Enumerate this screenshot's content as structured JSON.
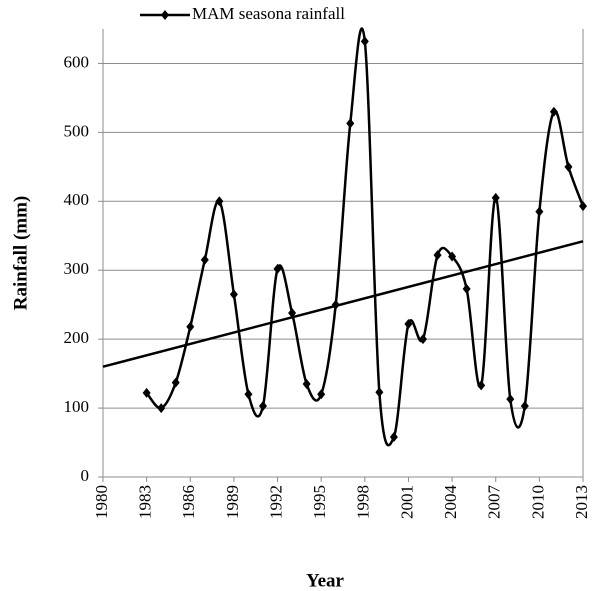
{
  "chart_data": {
    "type": "line",
    "x_label": "Year",
    "y_label": "Rainfall (mm)",
    "x": [
      1983,
      1984,
      1985,
      1986,
      1987,
      1988,
      1989,
      1990,
      1991,
      1992,
      1993,
      1994,
      1995,
      1996,
      1997,
      1998,
      1999,
      2000,
      2001,
      2002,
      2003,
      2004,
      2005,
      2006,
      2007,
      2008,
      2009,
      2010,
      2011,
      2012,
      2013
    ],
    "series": [
      {
        "name": "MAM seasona rainfall",
        "color": "#000000",
        "values": [
          122,
          100,
          137,
          218,
          315,
          400,
          265,
          120,
          103,
          302,
          238,
          135,
          120,
          250,
          513,
          632,
          123,
          58,
          222,
          200,
          322,
          320,
          273,
          133,
          405,
          113,
          103,
          385,
          530,
          450,
          393
        ]
      }
    ],
    "trend": {
      "x": [
        1980,
        2013
      ],
      "values": [
        160,
        342
      ]
    },
    "xlim": [
      1980,
      2013
    ],
    "xticks": [
      1980,
      1983,
      1986,
      1989,
      1992,
      1995,
      1998,
      2001,
      2004,
      2007,
      2010,
      2013
    ],
    "ylim": [
      0,
      650
    ],
    "yticks": [
      0,
      100,
      200,
      300,
      400,
      500,
      600
    ],
    "grid": true,
    "legend": "top"
  }
}
